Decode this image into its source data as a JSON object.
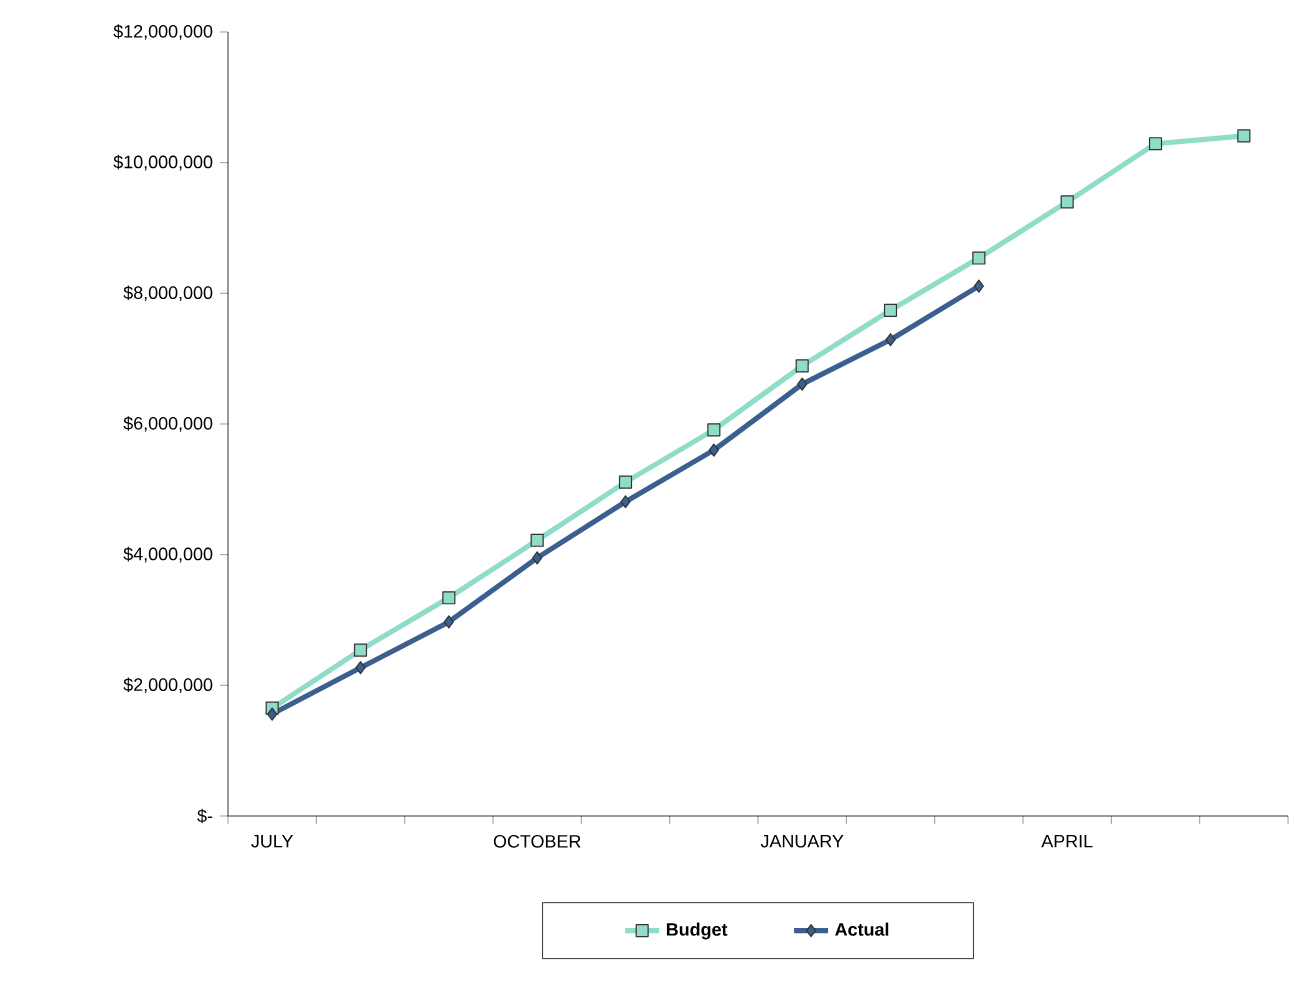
{
  "chart_data": {
    "type": "line",
    "categories": [
      "JULY",
      null,
      null,
      "OCTOBER",
      null,
      null,
      "JANUARY",
      null,
      null,
      "APRIL",
      null,
      null
    ],
    "series": [
      {
        "name": "Budget",
        "color": "#8fdcc8",
        "marker": "square",
        "values": [
          1650000,
          2540000,
          3340000,
          4220000,
          5110000,
          5910000,
          6890000,
          7740000,
          8540000,
          9400000,
          10290000,
          10410000
        ]
      },
      {
        "name": "Actual",
        "color": "#3b5f8e",
        "marker": "diamond",
        "values": [
          1560000,
          2270000,
          2970000,
          3950000,
          4810000,
          5600000,
          6610000,
          7290000,
          8110000,
          null,
          null,
          null
        ]
      }
    ],
    "ylim": [
      0,
      12000000
    ],
    "yticks": [
      {
        "value": 0,
        "label": "$-"
      },
      {
        "value": 2000000,
        "label": "$2,000,000"
      },
      {
        "value": 4000000,
        "label": "$4,000,000"
      },
      {
        "value": 6000000,
        "label": "$6,000,000"
      },
      {
        "value": 8000000,
        "label": "$8,000,000"
      },
      {
        "value": 10000000,
        "label": "$10,000,000"
      },
      {
        "value": 12000000,
        "label": "$12,000,000"
      }
    ],
    "legend": "bottom"
  }
}
